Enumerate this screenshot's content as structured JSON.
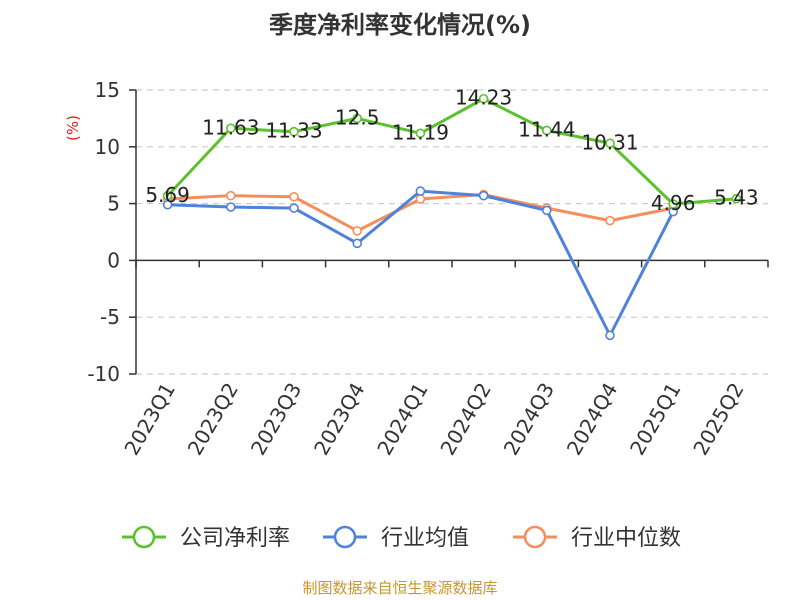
{
  "chart_data": {
    "type": "line",
    "title": "季度净利率变化情况(%)",
    "ylabel": "(%)",
    "xlabel": "",
    "categories": [
      "2023Q1",
      "2023Q2",
      "2023Q3",
      "2023Q4",
      "2024Q1",
      "2024Q2",
      "2024Q3",
      "2024Q4",
      "2025Q1",
      "2025Q2"
    ],
    "ylim": [
      -10,
      15
    ],
    "yticks": [
      -10,
      -5,
      0,
      5,
      10,
      15
    ],
    "grid": true,
    "legend_position": "bottom",
    "series": [
      {
        "name": "公司净利率",
        "color": "#5cc12c",
        "values": [
          5.69,
          11.63,
          11.33,
          12.5,
          11.19,
          14.23,
          11.44,
          10.31,
          4.96,
          5.43
        ],
        "labels": [
          "5.69",
          "11.63",
          "11.33",
          "12.5",
          "11.19",
          "14.23",
          "11.44",
          "10.31",
          "4.96",
          "5.43"
        ]
      },
      {
        "name": "行业均值",
        "color": "#4f82d9",
        "values": [
          4.9,
          4.7,
          4.6,
          1.5,
          6.1,
          5.7,
          4.4,
          -6.6,
          4.3,
          null
        ]
      },
      {
        "name": "行业中位数",
        "color": "#f58e5a",
        "values": [
          5.4,
          5.7,
          5.6,
          2.6,
          5.4,
          5.8,
          4.6,
          3.5,
          4.6,
          null
        ]
      }
    ]
  },
  "footer": {
    "source": "制图数据来自恒生聚源数据库",
    "source_color": "#c8962e"
  }
}
